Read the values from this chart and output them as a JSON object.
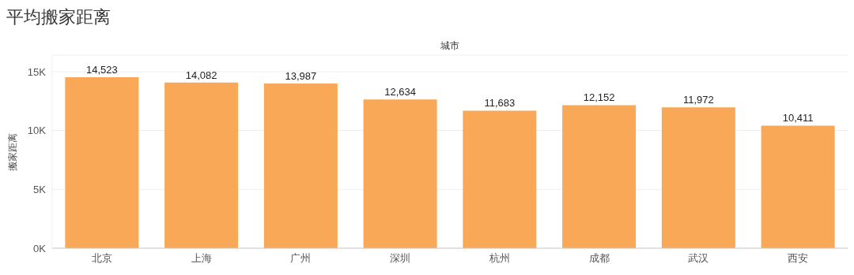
{
  "chart_data": {
    "type": "bar",
    "title": "平均搬家距离",
    "xlabel": "城市",
    "ylabel": "搬家距离",
    "categories": [
      "北京",
      "上海",
      "广州",
      "深圳",
      "杭州",
      "成都",
      "武汉",
      "西安"
    ],
    "values": [
      14523,
      14082,
      13987,
      12634,
      11683,
      12152,
      11972,
      10411
    ],
    "color": "#f8a857",
    "ylim": [
      0,
      16400
    ],
    "yticks": [
      {
        "value": 0,
        "label": "0K"
      },
      {
        "value": 5000,
        "label": "5K"
      },
      {
        "value": 10000,
        "label": "10K"
      },
      {
        "value": 15000,
        "label": "15K"
      }
    ],
    "value_labels": [
      "14,523",
      "14,082",
      "13,987",
      "12,634",
      "11,683",
      "12,152",
      "11,972",
      "10,411"
    ],
    "grid": "y",
    "legend": false
  }
}
